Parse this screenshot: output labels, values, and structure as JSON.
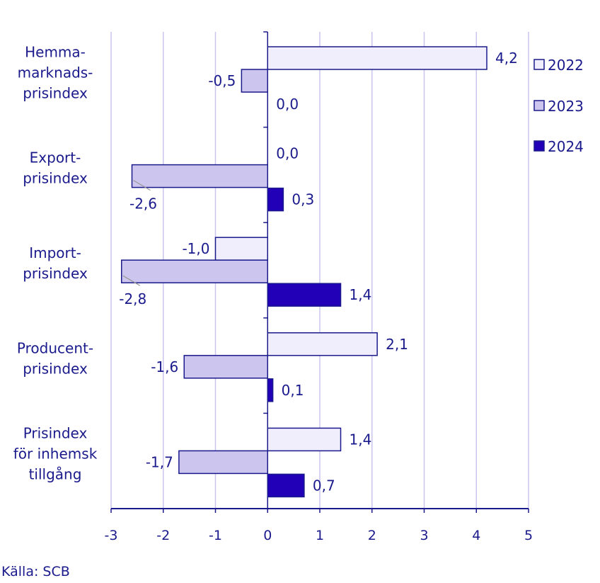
{
  "chart_data": {
    "type": "bar",
    "orientation": "horizontal",
    "categories": [
      [
        "Hemma-",
        "marknads-",
        "prisindex"
      ],
      [
        "Export-",
        "prisindex"
      ],
      [
        "Import-",
        "prisindex"
      ],
      [
        "Producent-",
        "prisindex"
      ],
      [
        "Prisindex",
        "för inhemsk",
        "tillgång"
      ]
    ],
    "series": [
      {
        "name": "2022",
        "values": [
          4.2,
          null,
          -1.0,
          2.1,
          1.4
        ],
        "labels": [
          "4,2",
          "",
          "-1,0",
          "2,1",
          "1,4"
        ],
        "color": "#f0eefc"
      },
      {
        "name": "2023",
        "values": [
          -0.5,
          -2.6,
          -2.8,
          -1.6,
          -1.7
        ],
        "labels": [
          "-0,5",
          "-2,6",
          "-2,8",
          "-1,6",
          "-1,7"
        ],
        "color": "#ccc6ee"
      },
      {
        "name": "2024",
        "values": [
          0.0,
          0.3,
          1.4,
          0.1,
          0.7
        ],
        "labels": [
          "0,0",
          "0,3",
          "1,4",
          "0,1",
          "0,7"
        ],
        "color": "#2200b8"
      }
    ],
    "extra_labels": [
      {
        "category": 1,
        "series": 0,
        "text": "0,0"
      }
    ],
    "xlim": [
      -3,
      5
    ],
    "xticks": [
      "-3",
      "-2",
      "-1",
      "0",
      "1",
      "2",
      "3",
      "4",
      "5"
    ],
    "grid": true,
    "legend_position": "right",
    "title": "",
    "xlabel": "",
    "ylabel": ""
  },
  "source": "Källa: SCB",
  "colors": {
    "text": "#1a1a8c",
    "grid": "#c9c5ee",
    "bar_edge": "#1a1a8c",
    "axis": "#1a1a8c"
  }
}
